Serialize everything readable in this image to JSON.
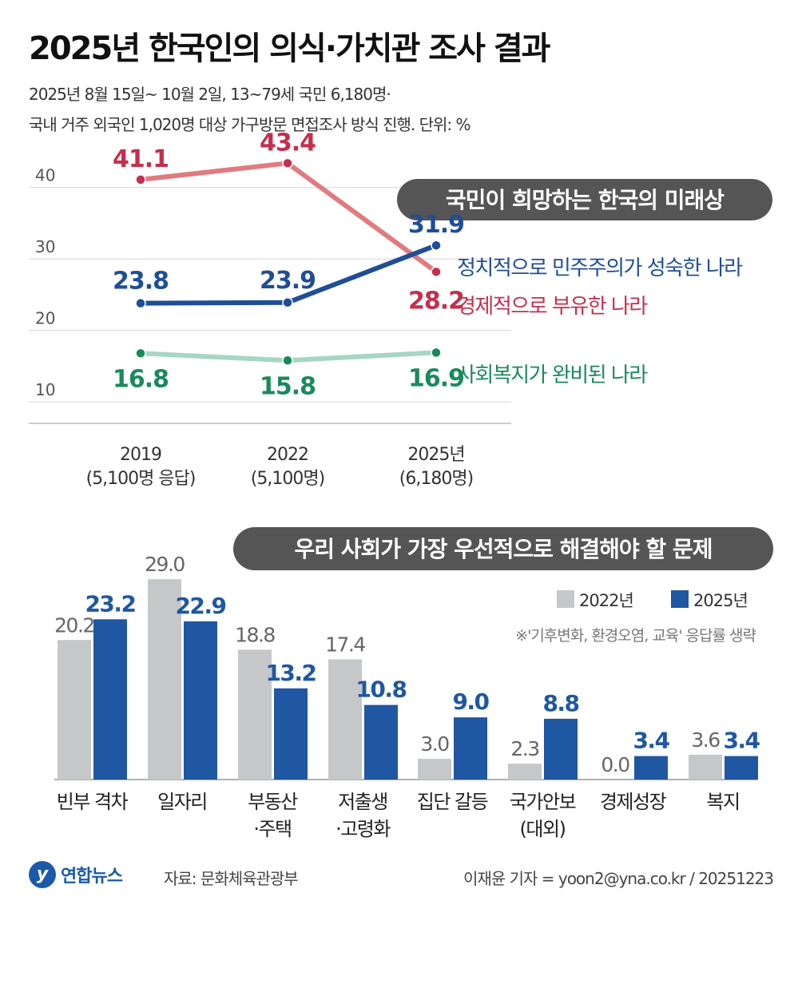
{
  "title": "2025년 한국인의 의식·가치관 조사 결과",
  "subtitle_line1": "2025년 8월 15일~ 10월 2일, 13~79세 국민 6,180명·",
  "subtitle_line2": "국내 거주 외국인 1,020명 대상 가구방문 면접조사 방식 진행. 단위: %",
  "colors": {
    "red": "#c3304d",
    "red_line": "#e07b80",
    "blue": "#1f4e96",
    "green": "#1a8a5b",
    "green_line": "#a7d6c3",
    "gray_bar": "#c6c7c9",
    "blue_bar": "#1f57a3",
    "pill": "#555555"
  },
  "chart_data": [
    {
      "type": "line",
      "title": "국민이 희망하는 한국의 미래상",
      "categories": [
        "2019",
        "2022",
        "2025년"
      ],
      "category_sublabels": [
        "(5,100명 응답)",
        "(5,100명)",
        "(6,180명)"
      ],
      "yticks": [
        40,
        30,
        20,
        10
      ],
      "ytick_labels": [
        "40",
        "30",
        "20",
        "10"
      ],
      "ylim": [
        7,
        45
      ],
      "series": [
        {
          "name": "경제적으로 부유한 나라",
          "color": "red",
          "values": [
            41.1,
            43.4,
            28.2
          ],
          "labels": [
            "41.1",
            "43.4",
            "28.2"
          ]
        },
        {
          "name": "정치적으로 민주주의가 성숙한 나라",
          "color": "blue",
          "values": [
            23.8,
            23.9,
            31.9
          ],
          "labels": [
            "23.8",
            "23.9",
            "31.9"
          ]
        },
        {
          "name": "사회복지가 완비된 나라",
          "color": "green",
          "values": [
            16.8,
            15.8,
            16.9
          ],
          "labels": [
            "16.8",
            "15.8",
            "16.9"
          ]
        }
      ]
    },
    {
      "type": "bar",
      "title": "우리 사회가 가장 우선적으로 해결해야 할 문제",
      "note": "※'기후변화, 환경오염, 교육' 응답률 생략",
      "categories": [
        "빈부 격차",
        "일자리",
        "부동산\n·주택",
        "저출생\n·고령화",
        "집단 갈등",
        "국가안보\n(대외)",
        "경제성장",
        "복지"
      ],
      "series": [
        {
          "name": "2022년",
          "values": [
            20.2,
            29.0,
            18.8,
            17.4,
            3.0,
            2.3,
            0.0,
            3.6
          ],
          "labels": [
            "20.2",
            "29.0",
            "18.8",
            "17.4",
            "3.0",
            "2.3",
            "0.0",
            "3.6"
          ]
        },
        {
          "name": "2025년",
          "values": [
            23.2,
            22.9,
            13.2,
            10.8,
            9.0,
            8.8,
            3.4,
            3.4
          ],
          "labels": [
            "23.2",
            "22.9",
            "13.2",
            "10.8",
            "9.0",
            "8.8",
            "3.4",
            "3.4"
          ]
        }
      ]
    }
  ],
  "footer": {
    "logo_mark": "y",
    "logo_text": "연합뉴스",
    "source": "자료: 문화체육관광부",
    "credit": "이재윤 기자 = yoon2@yna.co.kr / 20251223"
  }
}
